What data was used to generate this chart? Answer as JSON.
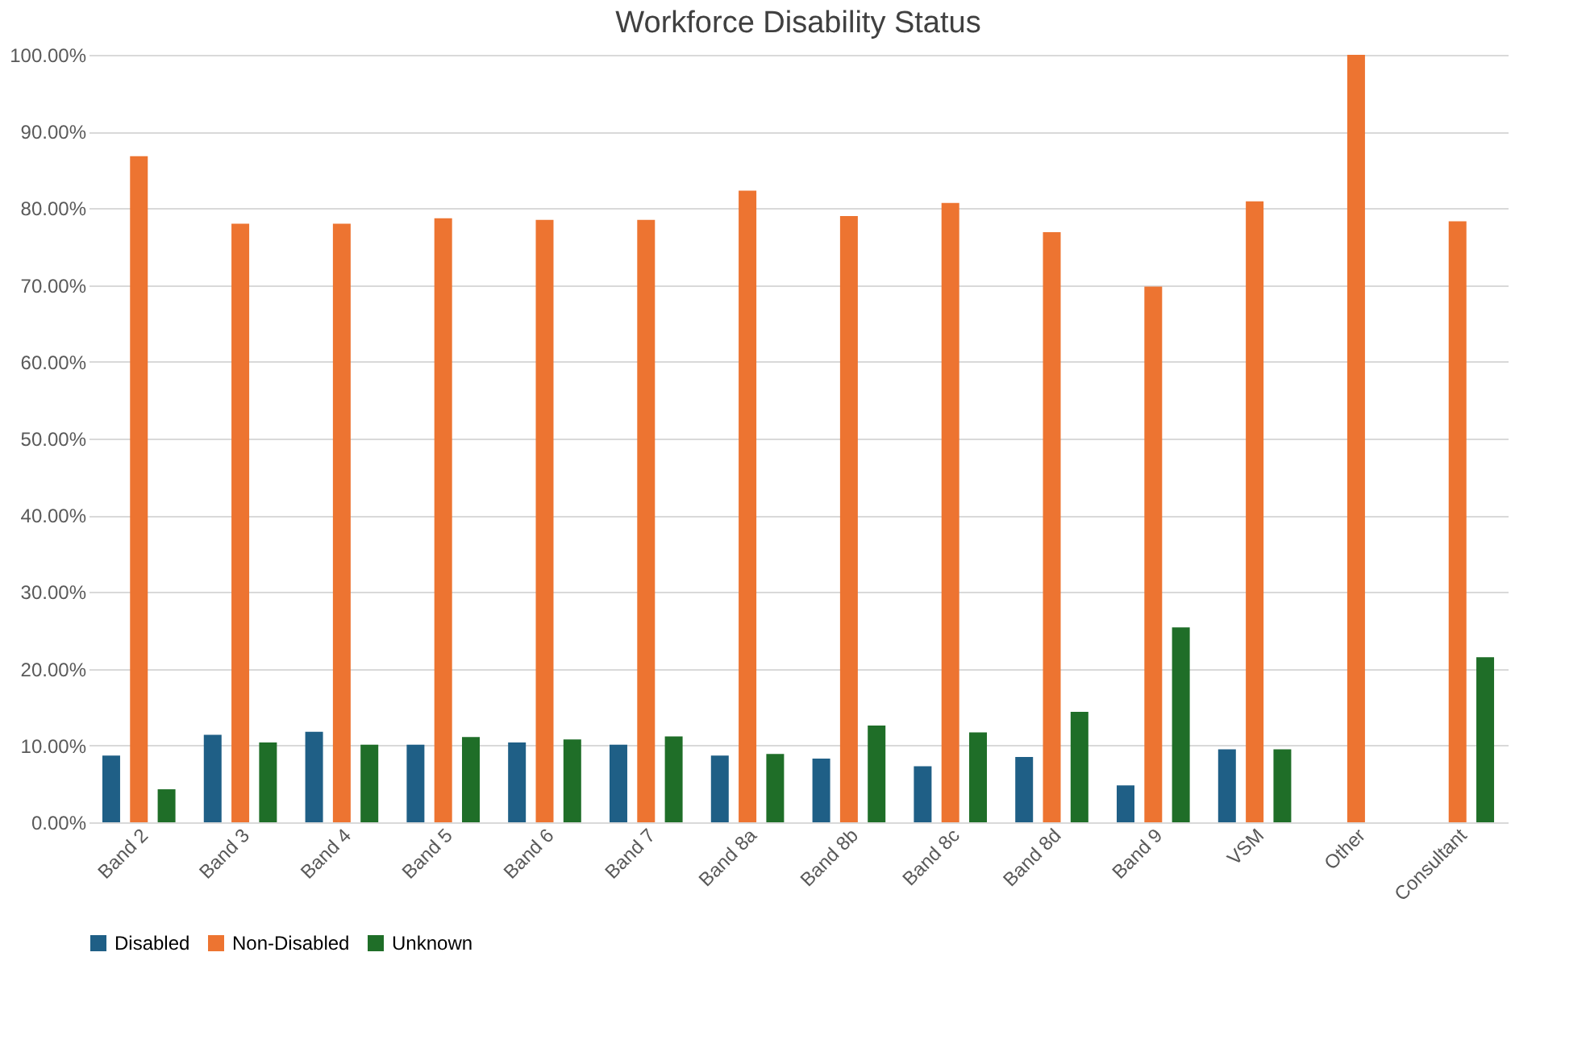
{
  "chart_data": {
    "type": "bar",
    "title": "Workforce Disability Status",
    "categories": [
      "Band 2",
      "Band 3",
      "Band 4",
      "Band 5",
      "Band 6",
      "Band 7",
      "Band 8a",
      "Band 8b",
      "Band 8c",
      "Band 8d",
      "Band 9",
      "VSM",
      "Other",
      "Consultant"
    ],
    "series": [
      {
        "name": "Disabled",
        "color": "#1f5f86",
        "values": [
          8.7,
          11.4,
          11.8,
          10.1,
          10.4,
          10.1,
          8.7,
          8.3,
          7.3,
          8.5,
          4.8,
          9.5,
          null,
          null
        ]
      },
      {
        "name": "Non-Disabled",
        "color": "#ed7431",
        "values": [
          86.8,
          78.0,
          78.0,
          78.7,
          78.5,
          78.5,
          82.3,
          79.0,
          80.7,
          76.9,
          69.8,
          80.9,
          100,
          78.3
        ]
      },
      {
        "name": "Unknown",
        "color": "#1f6e28",
        "values": [
          4.3,
          10.4,
          10.1,
          11.1,
          10.8,
          11.2,
          8.9,
          12.6,
          11.7,
          14.4,
          25.4,
          9.5,
          null,
          21.5
        ]
      }
    ],
    "ylim": [
      0,
      100
    ],
    "yticks": [
      {
        "value": 0,
        "label": "0.00%"
      },
      {
        "value": 10,
        "label": "10.00%"
      },
      {
        "value": 20,
        "label": "20.00%"
      },
      {
        "value": 30,
        "label": "30.00%"
      },
      {
        "value": 40,
        "label": "40.00%"
      },
      {
        "value": 50,
        "label": "50.00%"
      },
      {
        "value": 60,
        "label": "60.00%"
      },
      {
        "value": 70,
        "label": "70.00%"
      },
      {
        "value": 80,
        "label": "80.00%"
      },
      {
        "value": 90,
        "label": "90.00%"
      },
      {
        "value": 100,
        "label": "100.00%"
      }
    ],
    "grid": "y",
    "legend": "bottom"
  }
}
